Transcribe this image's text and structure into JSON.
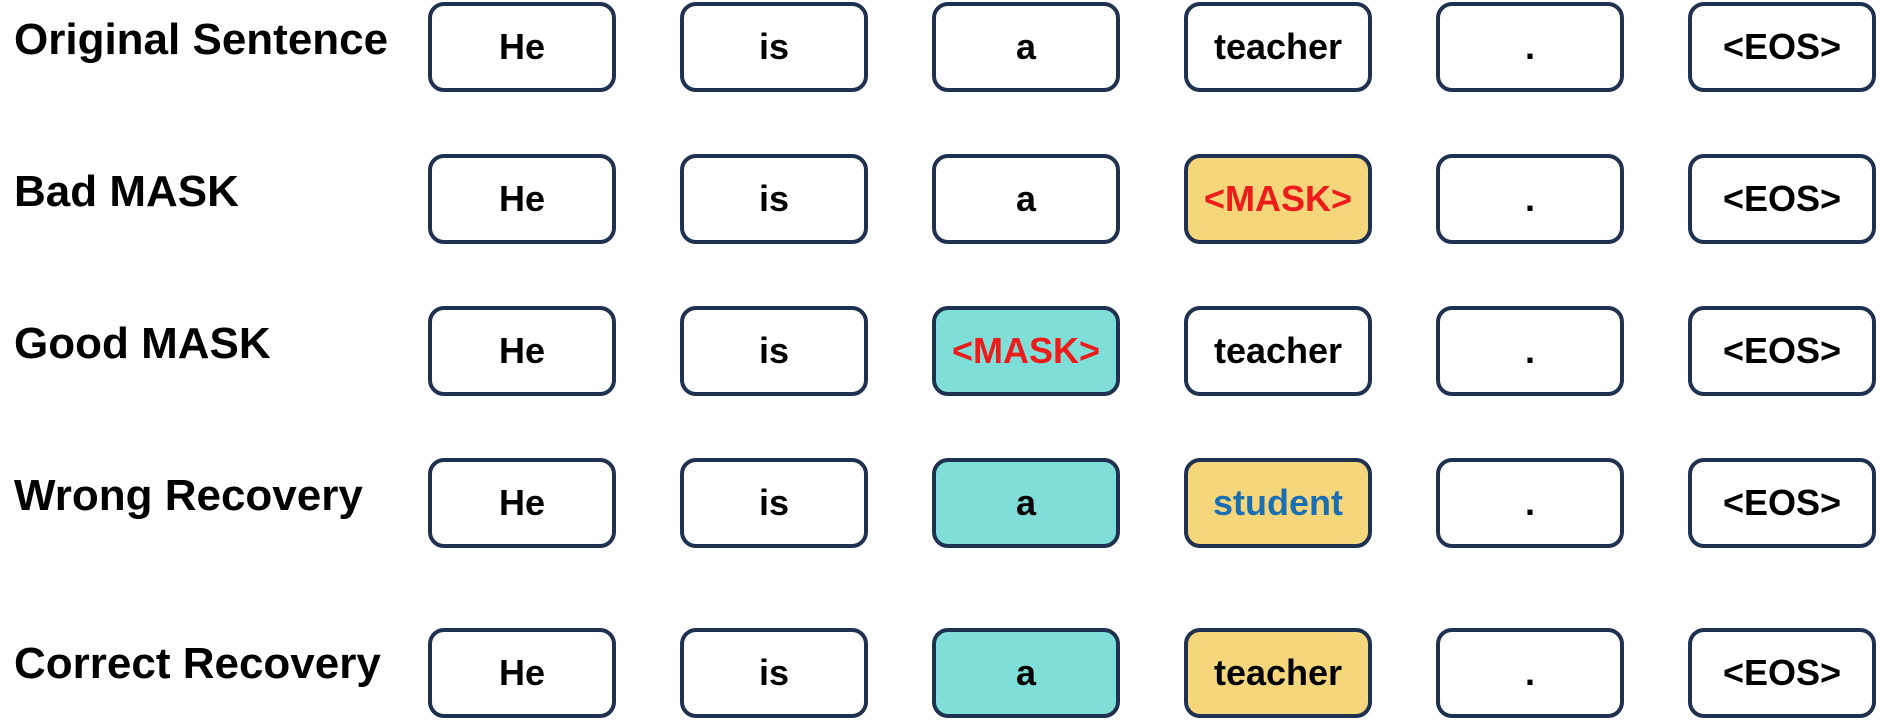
{
  "colors": {
    "box_border": "#1f3150",
    "box_fill": "#ffffff",
    "highlight_yellow": "#f5d67a",
    "highlight_cyan": "#7fded7",
    "mask_text": "#ee1b1b",
    "wrong_text": "#1a6fb3"
  },
  "rows": [
    {
      "label": "Original Sentence",
      "tokens": [
        {
          "text": "He",
          "fill": "white",
          "text_color": "black"
        },
        {
          "text": "is",
          "fill": "white",
          "text_color": "black"
        },
        {
          "text": "a",
          "fill": "white",
          "text_color": "black"
        },
        {
          "text": "teacher",
          "fill": "white",
          "text_color": "black"
        },
        {
          "text": ".",
          "fill": "white",
          "text_color": "black"
        },
        {
          "text": "<EOS>",
          "fill": "white",
          "text_color": "black"
        }
      ]
    },
    {
      "label": "Bad MASK",
      "tokens": [
        {
          "text": "He",
          "fill": "white",
          "text_color": "black"
        },
        {
          "text": "is",
          "fill": "white",
          "text_color": "black"
        },
        {
          "text": "a",
          "fill": "white",
          "text_color": "black"
        },
        {
          "text": "<MASK>",
          "fill": "yellow",
          "text_color": "red"
        },
        {
          "text": ".",
          "fill": "white",
          "text_color": "black"
        },
        {
          "text": "<EOS>",
          "fill": "white",
          "text_color": "black"
        }
      ]
    },
    {
      "label": "Good MASK",
      "tokens": [
        {
          "text": "He",
          "fill": "white",
          "text_color": "black"
        },
        {
          "text": "is",
          "fill": "white",
          "text_color": "black"
        },
        {
          "text": "<MASK>",
          "fill": "cyan",
          "text_color": "red"
        },
        {
          "text": "teacher",
          "fill": "white",
          "text_color": "black"
        },
        {
          "text": ".",
          "fill": "white",
          "text_color": "black"
        },
        {
          "text": "<EOS>",
          "fill": "white",
          "text_color": "black"
        }
      ]
    },
    {
      "label": "Wrong Recovery",
      "tokens": [
        {
          "text": "He",
          "fill": "white",
          "text_color": "black"
        },
        {
          "text": "is",
          "fill": "white",
          "text_color": "black"
        },
        {
          "text": "a",
          "fill": "cyan",
          "text_color": "black"
        },
        {
          "text": "student",
          "fill": "yellow",
          "text_color": "blue"
        },
        {
          "text": ".",
          "fill": "white",
          "text_color": "black"
        },
        {
          "text": "<EOS>",
          "fill": "white",
          "text_color": "black"
        }
      ]
    },
    {
      "label": "Correct Recovery",
      "tokens": [
        {
          "text": "He",
          "fill": "white",
          "text_color": "black"
        },
        {
          "text": "is",
          "fill": "white",
          "text_color": "black"
        },
        {
          "text": "a",
          "fill": "cyan",
          "text_color": "black"
        },
        {
          "text": "teacher",
          "fill": "yellow",
          "text_color": "black"
        },
        {
          "text": ".",
          "fill": "white",
          "text_color": "black"
        },
        {
          "text": "<EOS>",
          "fill": "white",
          "text_color": "black"
        }
      ]
    }
  ]
}
